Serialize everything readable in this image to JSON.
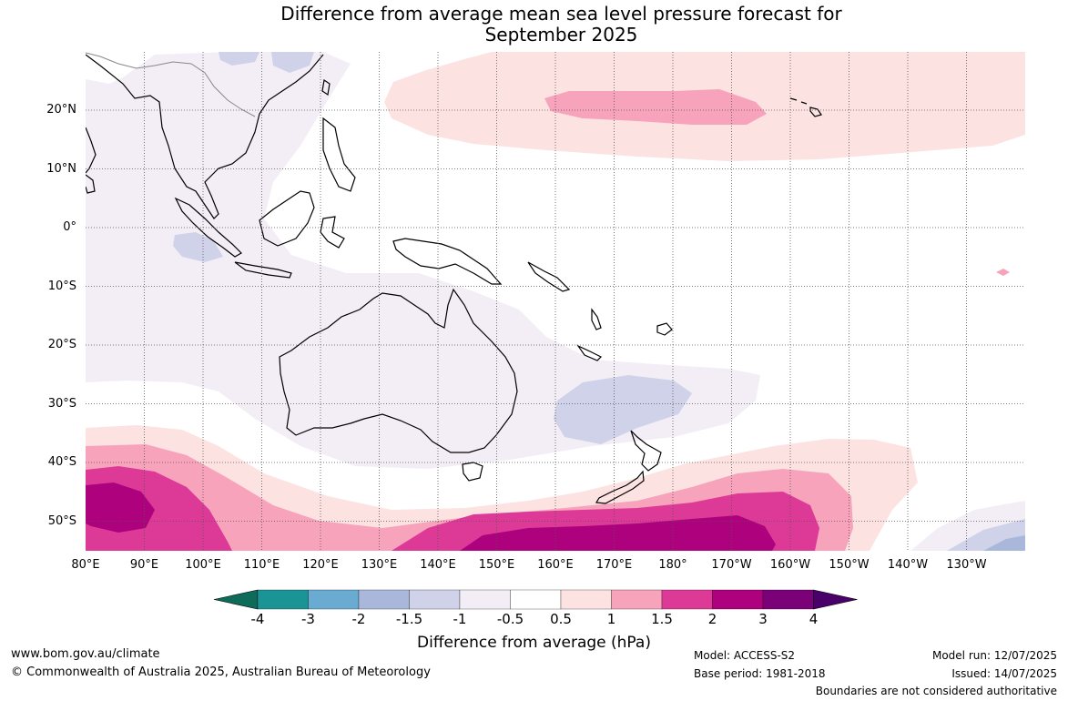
{
  "title_line1": "Difference from average mean sea level pressure forecast for",
  "title_line2": "September 2025",
  "lat_labels": [
    "20°N",
    "10°N",
    "0°",
    "10°S",
    "20°S",
    "30°S",
    "40°S",
    "50°S"
  ],
  "lon_labels": [
    "80°E",
    "90°E",
    "100°E",
    "110°E",
    "120°E",
    "130°E",
    "140°E",
    "150°E",
    "160°E",
    "170°E",
    "180°",
    "170°W",
    "160°W",
    "150°W",
    "140°W",
    "130°W"
  ],
  "colorbar": {
    "title": "Difference from average (hPa)",
    "ticks": [
      "-4",
      "-3",
      "-2",
      "-1.5",
      "-1",
      "-0.5",
      "0.5",
      "1",
      "1.5",
      "2",
      "3",
      "4"
    ],
    "colors": [
      "#0e6b5a",
      "#1a9494",
      "#6aabd2",
      "#a9b8da",
      "#cfd2e8",
      "#f3eef6",
      "#ffffff",
      "#fde2e2",
      "#f7a3bb",
      "#dd3a97",
      "#ae017e",
      "#7a0177",
      "#49006a"
    ]
  },
  "map_regions": {
    "very_light_lavender": "#f3eef6",
    "light_lavender": "#cfd2e8",
    "light_blue": "#a9b8da",
    "pale_pink": "#fde2e2",
    "pink": "#f7a3bb",
    "magenta": "#dd3a97",
    "dark_magenta": "#ae017e"
  },
  "footer": {
    "website": "www.bom.gov.au/climate",
    "copyright": "© Commonwealth of Australia 2025, Australian Bureau of Meteorology",
    "model": "Model: ACCESS-S2",
    "base_period": "Base period: 1981-2018",
    "model_run": "Model run: 12/07/2025",
    "issued": "Issued: 14/07/2025",
    "disclaimer": "Boundaries are not considered authoritative"
  }
}
